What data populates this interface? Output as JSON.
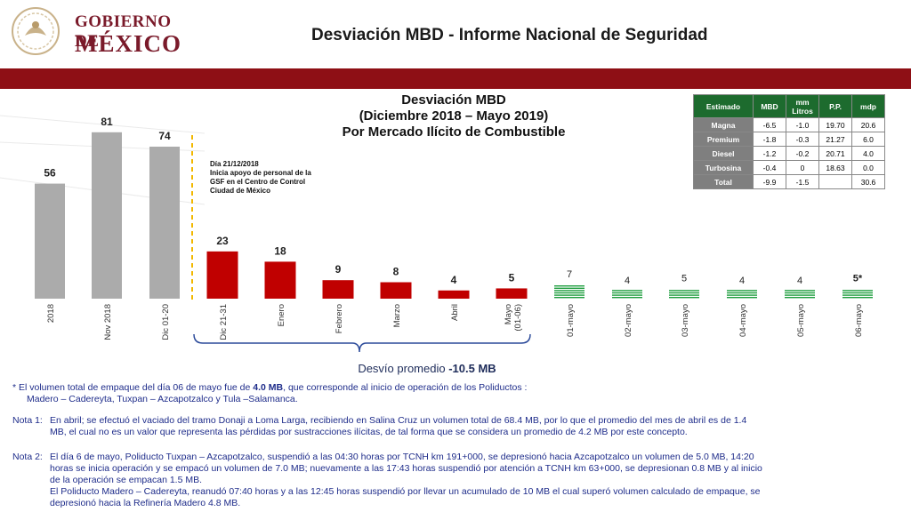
{
  "header": {
    "gov_line1": "GOBIERNO DE",
    "gov_line2": "MÉXICO",
    "title": "Desviación MBD - Informe Nacional de Seguridad"
  },
  "colors": {
    "brand": "#8e0f15",
    "gray_bar": "#ababab",
    "red_bar": "#c00000",
    "green_bar": "#1f9e3f",
    "table_header": "#1d6b2e"
  },
  "chart_data": {
    "type": "bar",
    "title": [
      "Desviación MBD",
      "(Diciembre 2018 – Mayo 2019)",
      "Por Mercado Ilícito de Combustible"
    ],
    "categories": [
      "2018",
      "Nov 2018",
      "Dic 01-20",
      "Dic 21-31",
      "Enero",
      "Febrero",
      "Marzo",
      "Abril",
      "Mayo (01-06)",
      "01-mayo",
      "02-mayo",
      "03-mayo",
      "04-mayo",
      "05-mayo",
      "06-mayo"
    ],
    "values": [
      56,
      81,
      74,
      23,
      18,
      9,
      8,
      4,
      5,
      7,
      4,
      5,
      4,
      4,
      5
    ],
    "value_labels": [
      "56",
      "81",
      "74",
      "23",
      "18",
      "9",
      "8",
      "4",
      "5",
      "7",
      "4",
      "5",
      "4",
      "4",
      "5*"
    ],
    "groups": [
      "gray",
      "gray",
      "gray",
      "red",
      "red",
      "red",
      "red",
      "red",
      "red",
      "green",
      "green",
      "green",
      "green",
      "green",
      "green"
    ],
    "ylim": [
      0,
      90
    ],
    "grid": false,
    "annotation": [
      "Día 21/12/2018",
      "Inicia apoyo de personal de la",
      "GSF en el Centro de Control",
      "Ciudad de México"
    ],
    "average_label": "Desvío promedio",
    "average_value": "-10.5 MB"
  },
  "table": {
    "headers": [
      "Estimado",
      "MBD",
      "mm Litros",
      "P.P.",
      "mdp"
    ],
    "rows": [
      [
        "Magna",
        "-6.5",
        "-1.0",
        "19.70",
        "20.6"
      ],
      [
        "Premium",
        "-1.8",
        "-0.3",
        "21.27",
        "6.0"
      ],
      [
        "Diesel",
        "-1.2",
        "-0.2",
        "20.71",
        "4.0"
      ],
      [
        "Turbosina",
        "-0.4",
        "0",
        "18.63",
        "0.0"
      ],
      [
        "Total",
        "-9.9",
        "-1.5",
        "",
        "30.6"
      ]
    ]
  },
  "notes": {
    "footnote_prefix": "* El volumen total de empaque del día 06 de mayo fue de ",
    "footnote_bold": "4.0 MB",
    "footnote_suffix": ", que corresponde al inicio de operación de los Poliductos :",
    "footnote_line2": "Madero – Cadereyta, Tuxpan – Azcapotzalco y Tula –Salamanca.",
    "nota1_label": "Nota 1:",
    "nota1_line1": "En abril; se efectuó el vaciado del tramo Donaji a Loma Larga, recibiendo en Salina Cruz un volumen total de 68.4 MB, por lo que el promedio del mes de abril es de 1.4",
    "nota1_line2": "MB, el cual no es un valor que representa las pérdidas por sustracciones ilícitas, de tal forma que se considera un promedio de 4.2 MB por este concepto.",
    "nota2_label": "Nota 2:",
    "nota2_line1": "El día 6 de mayo, Poliducto Tuxpan – Azcapotzalco, suspendió a las 04:30 horas por TCNH km 191+000, se depresionó hacia Azcapotzalco un volumen de 5.0 MB, 14:20",
    "nota2_line2": "horas se inicia operación y se empacó un volumen de 7.0 MB; nuevamente a las 17:43 horas suspendió por atención a TCNH km 63+000, se depresionan 0.8 MB y al inicio",
    "nota2_line3": "de la operación se empacan 1.5 MB.",
    "nota2_line4": "El Poliducto Madero – Cadereyta, reanudó 07:40 horas y a las 12:45 horas suspendió por llevar un acumulado de 10 MB el cual superó volumen calculado de empaque, se",
    "nota2_line5": "depresionó hacia la Refinería Madero 4.8 MB."
  }
}
